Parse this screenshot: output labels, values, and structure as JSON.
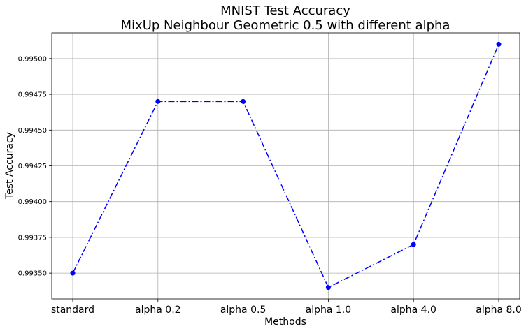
{
  "chart_data": {
    "type": "line",
    "title_line1": "MNIST Test Accuracy",
    "title_line2": "MixUp Neighbour Geometric 0.5 with different alpha",
    "xlabel": "Methods",
    "ylabel": "Test Accuracy",
    "categories": [
      "standard",
      "alpha 0.2",
      "alpha 0.5",
      "alpha 1.0",
      "alpha 4.0",
      "alpha 8.0"
    ],
    "series": [
      {
        "values": [
          0.9935,
          0.9947,
          0.9947,
          0.9934,
          0.9937,
          0.9951
        ],
        "color": "#0000ff",
        "linestyle": "dashdot",
        "marker": "circle"
      }
    ],
    "ylim": [
      0.99332,
      0.99518
    ],
    "yticks": [
      0.9935,
      0.99375,
      0.994,
      0.99425,
      0.9945,
      0.99475,
      0.995
    ],
    "ytick_labels": [
      "0.99350",
      "0.99375",
      "0.99400",
      "0.99425",
      "0.99450",
      "0.99475",
      "0.99500"
    ],
    "grid": true
  }
}
